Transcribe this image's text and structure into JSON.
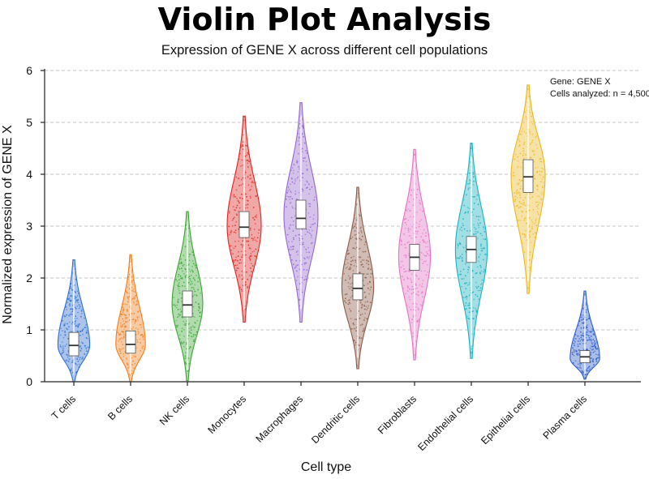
{
  "header": {
    "title": "Violin Plot Analysis",
    "subtitle": "Expression of GENE X across different cell populations"
  },
  "chart_data": {
    "type": "violin",
    "title": "Violin Plot Analysis",
    "subtitle": "Expression of GENE X across different cell populations",
    "xlabel": "Cell type",
    "ylabel": "Normalized expression of GENE X",
    "ylim": [
      0,
      6
    ],
    "yticks": [
      0,
      1,
      2,
      3,
      4,
      5,
      6
    ],
    "grid": "horizontal dashed",
    "annotation": [
      "Gene: GENE X",
      "Cells analyzed: n = 4,500"
    ],
    "categories": [
      "T cells",
      "B cells",
      "NK cells",
      "Monocytes",
      "Macrophages",
      "Dendritic cells",
      "Fibroblasts",
      "Endothelial cells",
      "Epithelial cells",
      "Plasma cells"
    ],
    "series": [
      {
        "category": "T cells",
        "color": "#2f6fd0",
        "min": 0.0,
        "max": 2.35,
        "median": 0.7,
        "q1": 0.5,
        "q3": 0.95,
        "mode": 0.7,
        "max_halfwidth": 0.28
      },
      {
        "category": "B cells",
        "color": "#f07f1e",
        "min": 0.0,
        "max": 2.45,
        "median": 0.72,
        "q1": 0.55,
        "q3": 0.98,
        "mode": 0.72,
        "max_halfwidth": 0.26
      },
      {
        "category": "NK cells",
        "color": "#3ca535",
        "min": 0.02,
        "max": 3.28,
        "median": 1.48,
        "q1": 1.25,
        "q3": 1.75,
        "mode": 1.5,
        "max_halfwidth": 0.27
      },
      {
        "category": "Monocytes",
        "color": "#d92623",
        "min": 1.15,
        "max": 5.12,
        "median": 2.98,
        "q1": 2.78,
        "q3": 3.28,
        "mode": 3.0,
        "max_halfwidth": 0.3
      },
      {
        "category": "Macrophages",
        "color": "#9467cf",
        "min": 1.15,
        "max": 5.38,
        "median": 3.15,
        "q1": 2.95,
        "q3": 3.5,
        "mode": 3.2,
        "max_halfwidth": 0.3
      },
      {
        "category": "Dendritic cells",
        "color": "#8c5a48",
        "min": 0.25,
        "max": 3.75,
        "median": 1.8,
        "q1": 1.58,
        "q3": 2.08,
        "mode": 1.82,
        "max_halfwidth": 0.28
      },
      {
        "category": "Fibroblasts",
        "color": "#e273c5",
        "min": 0.42,
        "max": 4.48,
        "median": 2.4,
        "q1": 2.15,
        "q3": 2.65,
        "mode": 2.42,
        "max_halfwidth": 0.28
      },
      {
        "category": "Endothelial cells",
        "color": "#19b2bf",
        "min": 0.45,
        "max": 4.6,
        "median": 2.55,
        "q1": 2.3,
        "q3": 2.8,
        "mode": 2.55,
        "max_halfwidth": 0.28
      },
      {
        "category": "Epithelial cells",
        "color": "#eab720",
        "min": 1.7,
        "max": 5.72,
        "median": 3.95,
        "q1": 3.65,
        "q3": 4.28,
        "mode": 3.98,
        "max_halfwidth": 0.3
      },
      {
        "category": "Plasma cells",
        "color": "#2d5ec9",
        "min": 0.05,
        "max": 1.75,
        "median": 0.48,
        "q1": 0.37,
        "q3": 0.6,
        "mode": 0.45,
        "max_halfwidth": 0.26
      }
    ]
  }
}
